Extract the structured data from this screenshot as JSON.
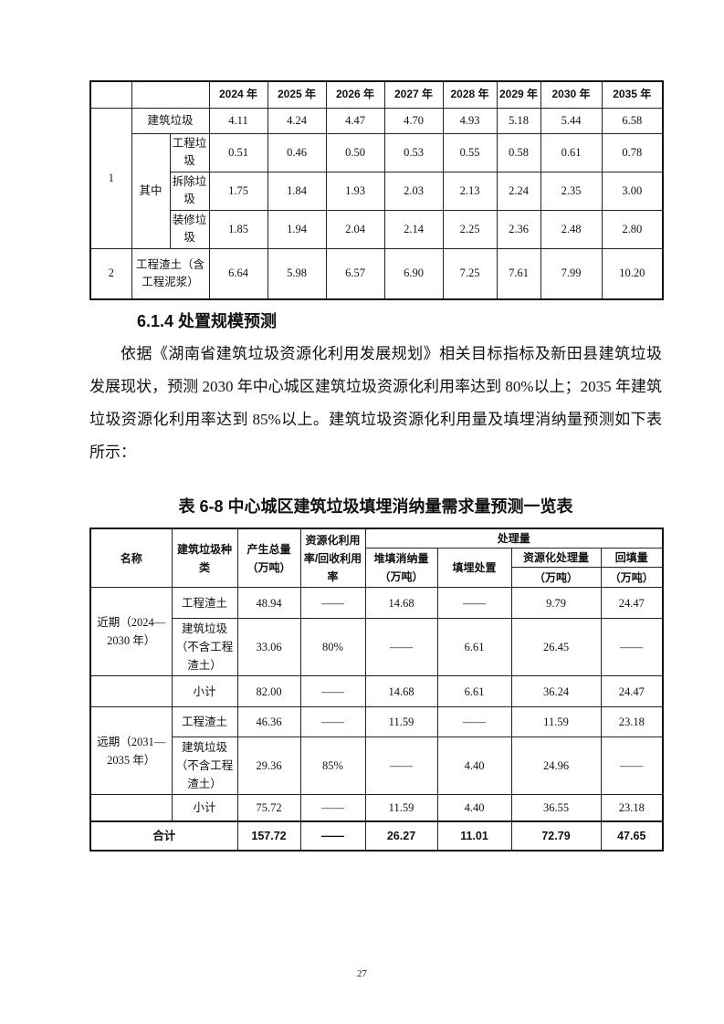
{
  "table1": {
    "years": [
      "2024 年",
      "2025 年",
      "2026 年",
      "2027 年",
      "2028 年",
      "2029 年",
      "2030 年",
      "2035 年"
    ],
    "rows": [
      {
        "no": "1",
        "group": "",
        "label": "建筑垃圾",
        "values": [
          "4.11",
          "4.24",
          "4.47",
          "4.70",
          "4.93",
          "5.18",
          "5.44",
          "6.58"
        ]
      },
      {
        "no": "",
        "group": "其中",
        "label": "工程垃圾",
        "values": [
          "0.51",
          "0.46",
          "0.50",
          "0.53",
          "0.55",
          "0.58",
          "0.61",
          "0.78"
        ]
      },
      {
        "no": "",
        "group": "",
        "label": "拆除垃圾",
        "values": [
          "1.75",
          "1.84",
          "1.93",
          "2.03",
          "2.13",
          "2.24",
          "2.35",
          "3.00"
        ]
      },
      {
        "no": "",
        "group": "",
        "label": "装修垃圾",
        "values": [
          "1.85",
          "1.94",
          "2.04",
          "2.14",
          "2.25",
          "2.36",
          "2.48",
          "2.80"
        ]
      },
      {
        "no": "2",
        "group": "",
        "label": "工程渣土（含工程泥浆）",
        "values": [
          "6.64",
          "5.98",
          "6.57",
          "6.90",
          "7.25",
          "7.61",
          "7.99",
          "10.20"
        ]
      }
    ]
  },
  "section": {
    "heading": "6.1.4 处置规模预测",
    "paragraph": "依据《湖南省建筑垃圾资源化利用发展规划》相关目标指标及新田县建筑垃圾发展现状，预测 2030 年中心城区建筑垃圾资源化利用率达到 80%以上；2035 年建筑垃圾资源化利用率达到 85%以上。建筑垃圾资源化利用量及填埋消纳量预测如下表所示："
  },
  "table2": {
    "caption": "表 6-8  中心城区建筑垃圾填埋消纳量需求量预测一览表",
    "headers": {
      "name": "名称",
      "type": "建筑垃圾种类",
      "total": "产生总量（万吨）",
      "rate": "资源化利用率/回收利用率",
      "processing": "处理量",
      "landfill_absorb": "堆填消纳量（万吨）",
      "landfill": "填埋处置",
      "recycle": "资源化处理量",
      "backfill": "回填量",
      "unit": "（万吨）"
    },
    "periods": [
      "近期（2024—2030 年）",
      "远期（2031—2035 年）"
    ],
    "rows": [
      {
        "type": "工程渣土",
        "values": [
          "48.94",
          "——",
          "14.68",
          "——",
          "9.79",
          "24.47"
        ]
      },
      {
        "type": "建筑垃圾（不含工程渣土）",
        "values": [
          "33.06",
          "80%",
          "——",
          "6.61",
          "26.45",
          "——"
        ]
      },
      {
        "type": "小计",
        "values": [
          "82.00",
          "——",
          "14.68",
          "6.61",
          "36.24",
          "24.47"
        ]
      },
      {
        "type": "工程渣土",
        "values": [
          "46.36",
          "——",
          "11.59",
          "——",
          "11.59",
          "23.18"
        ]
      },
      {
        "type": "建筑垃圾（不含工程渣土）",
        "values": [
          "29.36",
          "85%",
          "——",
          "4.40",
          "24.96",
          "——"
        ]
      },
      {
        "type": "小计",
        "values": [
          "75.72",
          "——",
          "11.59",
          "4.40",
          "36.55",
          "23.18"
        ]
      }
    ],
    "total": {
      "label": "合计",
      "values": [
        "157.72",
        "——",
        "26.27",
        "11.01",
        "72.79",
        "47.65"
      ]
    }
  },
  "page_number": "27"
}
